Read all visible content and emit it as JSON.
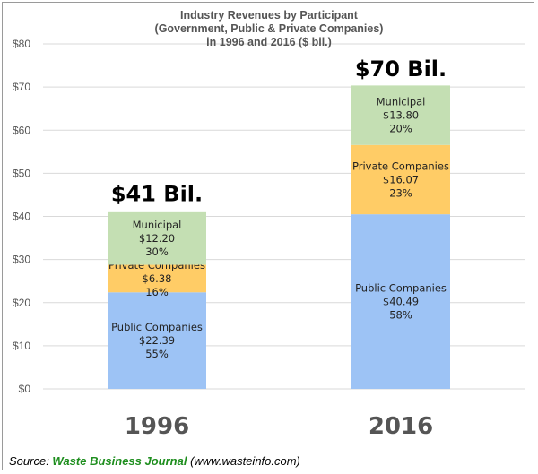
{
  "chart_data": {
    "type": "stacked-bar",
    "title_lines": [
      "Industry Revenues by Participant",
      "(Government, Public & Private Companies)",
      "in 1996 and 2016 ($ bil.)"
    ],
    "categories": [
      "1996",
      "2016"
    ],
    "ylim": [
      0,
      80
    ],
    "ytick_values": [
      0,
      10,
      20,
      30,
      40,
      50,
      60,
      70,
      80
    ],
    "ytick_labels": [
      "$0",
      "$10",
      "$20",
      "$30",
      "$40",
      "$50",
      "$60",
      "$70",
      "$80"
    ],
    "grid": true,
    "series": [
      {
        "name": "Public Companies",
        "color": "#9dc3f5",
        "values": [
          22.39,
          40.49
        ],
        "value_labels": [
          "$22.39",
          "$40.49"
        ],
        "pct_labels": [
          "55%",
          "58%"
        ]
      },
      {
        "name": "Private Companies",
        "color": "#ffcc66",
        "values": [
          6.38,
          16.07
        ],
        "value_labels": [
          "$6.38",
          "$16.07"
        ],
        "pct_labels": [
          "16%",
          "23%"
        ]
      },
      {
        "name": "Municipal",
        "color": "#c4dfb3",
        "values": [
          12.2,
          13.8
        ],
        "value_labels": [
          "$12.20",
          "$13.80"
        ],
        "pct_labels": [
          "30%",
          "20%"
        ]
      }
    ],
    "totals": [
      41,
      70
    ],
    "total_labels": [
      "$41 Bil.",
      "$70 Bil."
    ]
  },
  "source": {
    "prefix": "Source: ",
    "brand": "Waste Business Journal",
    "suffix": " (www.wasteinfo.com)"
  }
}
